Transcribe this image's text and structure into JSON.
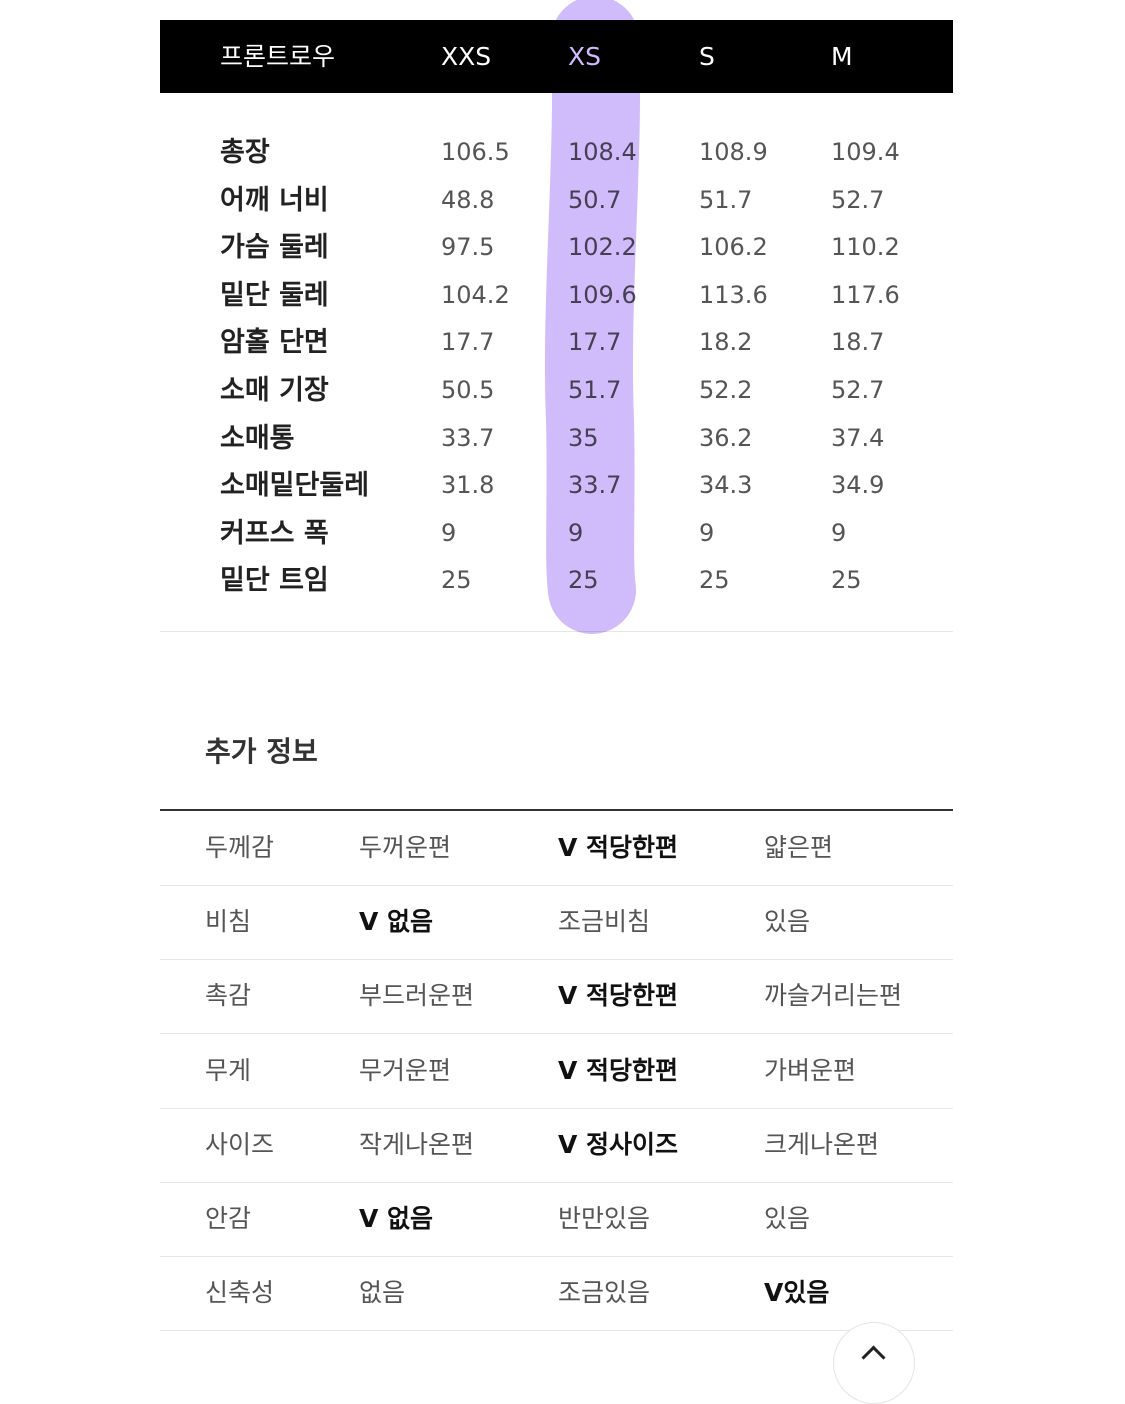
{
  "size_table": {
    "header": [
      "프론트로우",
      "XXS",
      "XS",
      "S",
      "M"
    ],
    "rows": [
      {
        "label": "총장",
        "values": [
          "106.5",
          "108.4",
          "108.9",
          "109.4"
        ]
      },
      {
        "label": "어깨 너비",
        "values": [
          "48.8",
          "50.7",
          "51.7",
          "52.7"
        ]
      },
      {
        "label": "가슴 둘레",
        "values": [
          "97.5",
          "102.2",
          "106.2",
          "110.2"
        ]
      },
      {
        "label": "밑단 둘레",
        "values": [
          "104.2",
          "109.6",
          "113.6",
          "117.6"
        ]
      },
      {
        "label": "암홀 단면",
        "values": [
          "17.7",
          "17.7",
          "18.2",
          "18.7"
        ]
      },
      {
        "label": "소매 기장",
        "values": [
          "50.5",
          "51.7",
          "52.2",
          "52.7"
        ]
      },
      {
        "label": "소매통",
        "values": [
          "33.7",
          "35",
          "36.2",
          "37.4"
        ]
      },
      {
        "label": "소매밑단둘레",
        "values": [
          "31.8",
          "33.7",
          "34.3",
          "34.9"
        ]
      },
      {
        "label": "커프스 폭",
        "values": [
          "9",
          "9",
          "9",
          "9"
        ]
      },
      {
        "label": "밑단 트임",
        "values": [
          "25",
          "25",
          "25",
          "25"
        ]
      }
    ],
    "highlighted_column": "XS",
    "highlight_color": "#c9b0fa"
  },
  "additional_info": {
    "title": "추가 정보",
    "rows": [
      {
        "label": "두께감",
        "options": [
          "두꺼운편",
          "V 적당한편",
          "얇은편"
        ],
        "selected": 1
      },
      {
        "label": "비침",
        "options": [
          "V 없음",
          "조금비침",
          "있음"
        ],
        "selected": 0
      },
      {
        "label": "촉감",
        "options": [
          "부드러운편",
          "V 적당한편",
          "까슬거리는편"
        ],
        "selected": 1
      },
      {
        "label": "무게",
        "options": [
          "무거운편",
          "V 적당한편",
          "가벼운편"
        ],
        "selected": 1
      },
      {
        "label": "사이즈",
        "options": [
          "작게나온편",
          "V 정사이즈",
          "크게나온편"
        ],
        "selected": 1
      },
      {
        "label": "안감",
        "options": [
          "V 없음",
          "반만있음",
          "있음"
        ],
        "selected": 0
      },
      {
        "label": "신축성",
        "options": [
          "없음",
          "조금있음",
          "V있음"
        ],
        "selected": 2
      }
    ]
  },
  "scroll_top_icon": "chevron-up-icon"
}
